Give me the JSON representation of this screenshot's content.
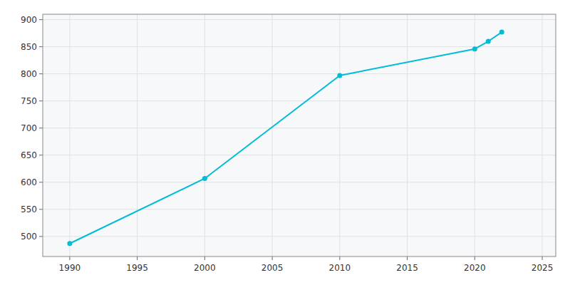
{
  "chart_data": {
    "type": "line",
    "x": [
      1990,
      2000,
      2010,
      2020,
      2021,
      2022
    ],
    "values": [
      487,
      607,
      797,
      846,
      860,
      877
    ],
    "color": "#00BCD4",
    "marker": "circle",
    "xlim": [
      1988,
      2026
    ],
    "ylim": [
      463,
      910
    ],
    "xticks": [
      1990,
      1995,
      2000,
      2005,
      2010,
      2015,
      2020,
      2025
    ],
    "yticks": [
      500,
      550,
      600,
      650,
      700,
      750,
      800,
      850,
      900
    ],
    "grid": true
  }
}
